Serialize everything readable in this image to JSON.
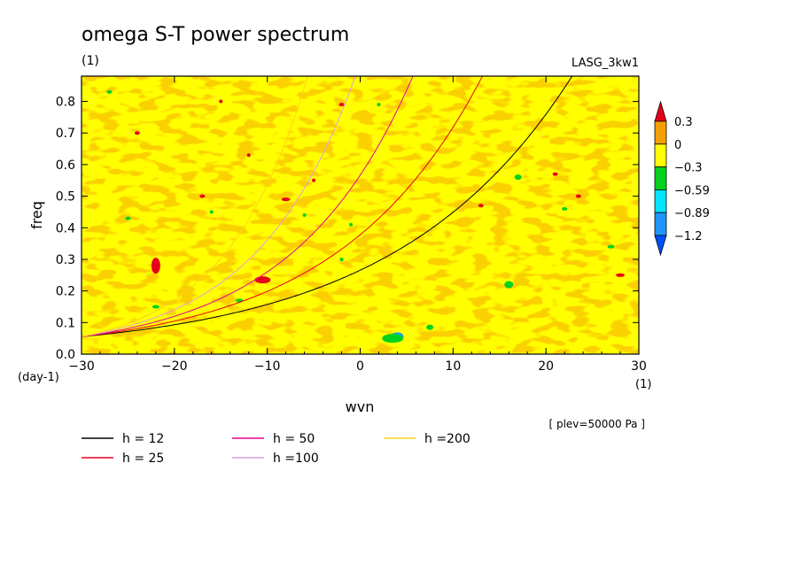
{
  "chart_data": {
    "type": "heatmap",
    "title": "omega S-T power spectrum",
    "units_label": "(1)",
    "model_label": "LASG_3kw1",
    "xlabel": "wvn",
    "ylabel": "freq",
    "x_units": "(1)",
    "y_units": "(day-1)",
    "level_label": "[ plev=50000 Pa ]",
    "xlim": [
      -30,
      30
    ],
    "ylim": [
      0,
      0.88
    ],
    "x_ticks": [
      -30,
      -20,
      -10,
      0,
      10,
      20,
      30
    ],
    "y_ticks": [
      0.0,
      0.1,
      0.2,
      0.3,
      0.4,
      0.5,
      0.6,
      0.7,
      0.8
    ],
    "x_tick_labels": [
      "-30",
      "-20",
      "-10",
      "0",
      "10",
      "20",
      "30"
    ],
    "y_tick_labels": [
      "0.0",
      "0.1",
      "0.2",
      "0.3",
      "0.4",
      "0.5",
      "0.6",
      "0.7",
      "0.8"
    ],
    "colorbar": {
      "levels": [
        "0.3",
        "0",
        "-0.3",
        "-0.59",
        "-0.89",
        "-1.2"
      ],
      "colors": [
        "#e8001a",
        "#f5a000",
        "#ffff00",
        "#00d21e",
        "#00e6ff",
        "#1e96ff",
        "#0050ff"
      ]
    },
    "dispersion_curves": [
      {
        "name": "h = 12",
        "h": 12,
        "color": "#000000"
      },
      {
        "name": "h = 25",
        "h": 25,
        "color": "#e8001a"
      },
      {
        "name": "h = 50",
        "h": 50,
        "color": "#e60096"
      },
      {
        "name": "h =100",
        "h": 100,
        "color": "#e0a0d8"
      },
      {
        "name": "h =200",
        "h": 200,
        "color": "#ffd21e"
      }
    ]
  }
}
